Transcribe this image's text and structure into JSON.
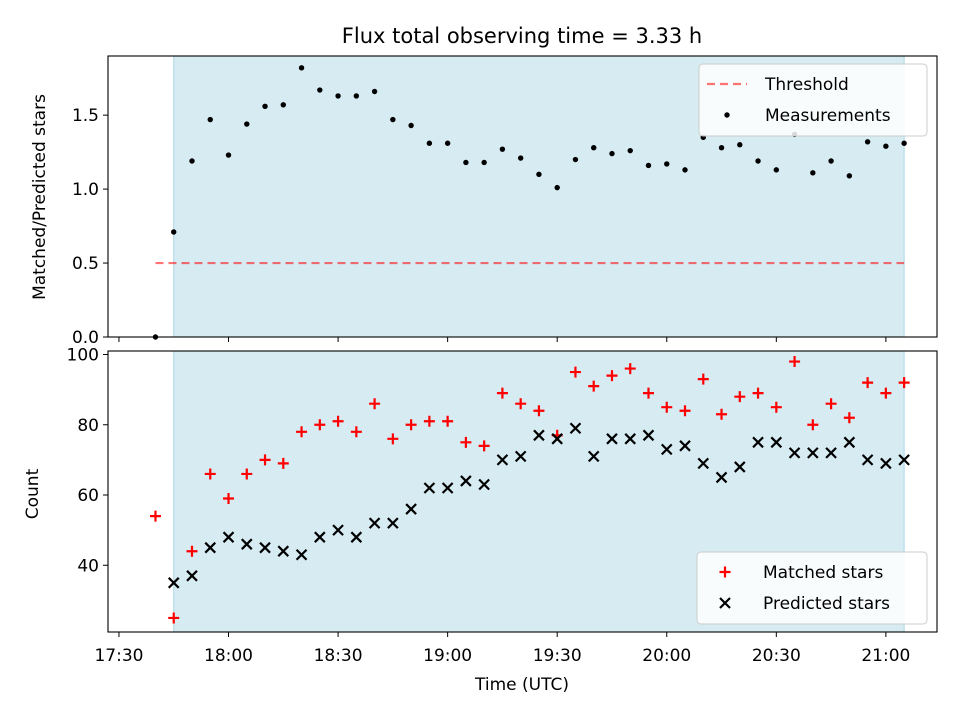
{
  "figure": {
    "title": "Flux total observing time = 3.33 h",
    "xlabel": "Time (UTC)",
    "x_ticks": [
      "17:30",
      "18:00",
      "18:30",
      "19:00",
      "19:30",
      "20:00",
      "20:30",
      "21:00"
    ]
  },
  "colors": {
    "shade": "#add8e6",
    "threshold": "#ff0000",
    "measurements": "#000000",
    "matched": "#ff0000",
    "predicted": "#000000"
  },
  "chart_data": [
    {
      "type": "scatter",
      "ylabel": "Matched/Predicted stars",
      "x_range": [
        "17:27",
        "21:14"
      ],
      "ylim": [
        0,
        1.9
      ],
      "y_ticks": [
        0.0,
        0.5,
        1.0,
        1.5
      ],
      "y_tick_labels": [
        "0.0",
        "0.5",
        "1.0",
        "1.5"
      ],
      "legend_position": "top-right",
      "shaded_interval": [
        "17:45",
        "21:05"
      ],
      "threshold": {
        "name": "Threshold",
        "value": 0.5,
        "x_start": "17:40",
        "x_end": "21:05"
      },
      "series": [
        {
          "name": "Measurements",
          "x": [
            "17:40",
            "17:45",
            "17:50",
            "17:55",
            "18:00",
            "18:05",
            "18:10",
            "18:15",
            "18:20",
            "18:25",
            "18:30",
            "18:35",
            "18:40",
            "18:45",
            "18:50",
            "18:55",
            "19:00",
            "19:05",
            "19:10",
            "19:15",
            "19:20",
            "19:25",
            "19:30",
            "19:35",
            "19:40",
            "19:45",
            "19:50",
            "19:55",
            "20:00",
            "20:05",
            "20:10",
            "20:15",
            "20:20",
            "20:25",
            "20:30",
            "20:35",
            "20:40",
            "20:45",
            "20:50",
            "20:55",
            "21:00",
            "21:05"
          ],
          "values": [
            0.0,
            0.71,
            1.19,
            1.47,
            1.23,
            1.44,
            1.56,
            1.57,
            1.82,
            1.67,
            1.63,
            1.63,
            1.66,
            1.47,
            1.43,
            1.31,
            1.31,
            1.18,
            1.18,
            1.27,
            1.21,
            1.1,
            1.01,
            1.2,
            1.28,
            1.24,
            1.26,
            1.16,
            1.17,
            1.13,
            1.35,
            1.28,
            1.3,
            1.19,
            1.13,
            1.37,
            1.11,
            1.19,
            1.09,
            1.32,
            1.29,
            1.31
          ]
        }
      ]
    },
    {
      "type": "scatter",
      "ylabel": "Count",
      "x_range": [
        "17:27",
        "21:14"
      ],
      "ylim": [
        21,
        101
      ],
      "y_ticks": [
        40,
        60,
        80,
        100
      ],
      "y_tick_labels": [
        "40",
        "60",
        "80",
        "100"
      ],
      "legend_position": "bottom-right",
      "shaded_interval": [
        "17:45",
        "21:05"
      ],
      "series": [
        {
          "name": "Matched stars",
          "marker": "+",
          "x": [
            "17:40",
            "17:45",
            "17:50",
            "17:55",
            "18:00",
            "18:05",
            "18:10",
            "18:15",
            "18:20",
            "18:25",
            "18:30",
            "18:35",
            "18:40",
            "18:45",
            "18:50",
            "18:55",
            "19:00",
            "19:05",
            "19:10",
            "19:15",
            "19:20",
            "19:25",
            "19:30",
            "19:35",
            "19:40",
            "19:45",
            "19:50",
            "19:55",
            "20:00",
            "20:05",
            "20:10",
            "20:15",
            "20:20",
            "20:25",
            "20:30",
            "20:35",
            "20:40",
            "20:45",
            "20:50",
            "20:55",
            "21:00",
            "21:05"
          ],
          "values": [
            54,
            25,
            44,
            66,
            59,
            66,
            70,
            69,
            78,
            80,
            81,
            78,
            86,
            76,
            80,
            81,
            81,
            75,
            74,
            89,
            86,
            84,
            77,
            95,
            91,
            94,
            96,
            89,
            85,
            84,
            93,
            83,
            88,
            89,
            85,
            98,
            80,
            86,
            82,
            92,
            89,
            92
          ]
        },
        {
          "name": "Predicted stars",
          "marker": "x",
          "x": [
            "17:45",
            "17:50",
            "17:55",
            "18:00",
            "18:05",
            "18:10",
            "18:15",
            "18:20",
            "18:25",
            "18:30",
            "18:35",
            "18:40",
            "18:45",
            "18:50",
            "18:55",
            "19:00",
            "19:05",
            "19:10",
            "19:15",
            "19:20",
            "19:25",
            "19:30",
            "19:35",
            "19:40",
            "19:45",
            "19:50",
            "19:55",
            "20:00",
            "20:05",
            "20:10",
            "20:15",
            "20:20",
            "20:25",
            "20:30",
            "20:35",
            "20:40",
            "20:45",
            "20:50",
            "20:55",
            "21:00",
            "21:05"
          ],
          "values": [
            35,
            37,
            45,
            48,
            46,
            45,
            44,
            43,
            48,
            50,
            48,
            52,
            52,
            56,
            62,
            62,
            64,
            63,
            70,
            71,
            77,
            76,
            79,
            71,
            76,
            76,
            77,
            73,
            74,
            69,
            65,
            68,
            75,
            75,
            72,
            72,
            72,
            75,
            70,
            69,
            70
          ]
        }
      ]
    }
  ]
}
